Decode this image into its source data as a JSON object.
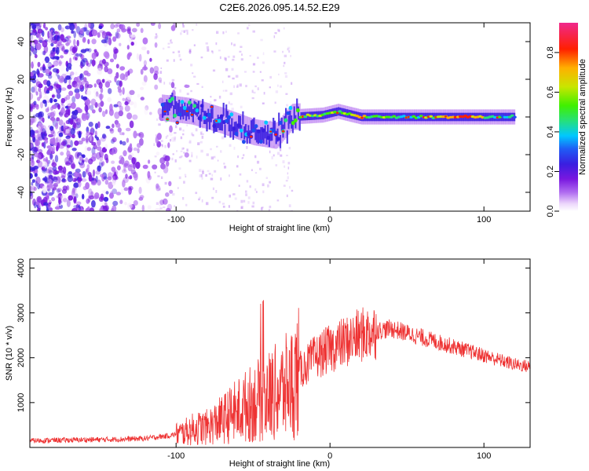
{
  "title": "C2E6.2026.095.14.52.E29",
  "colors": {
    "snr_line": "#ee3333",
    "axis": "#000000",
    "colormap": [
      "#f7ecfc",
      "#b06cf0",
      "#7a18e0",
      "#3a1ee0",
      "#1f4df0",
      "#00c8ff",
      "#26e07a",
      "#3ff000",
      "#c8e600",
      "#ffb000",
      "#ff2000",
      "#f0288c"
    ]
  },
  "chart_data": [
    {
      "type": "heatmap",
      "name": "spectrogram",
      "title": "",
      "xlabel": "Height of straight line (km)",
      "ylabel": "Frequency (Hz)",
      "xlim": [
        -195,
        130
      ],
      "ylim": [
        -50,
        50
      ],
      "xticks": [
        -100,
        0,
        100
      ],
      "yticks": [
        -40,
        -20,
        0,
        20,
        40
      ],
      "colorbar": {
        "label": "Normalized spectral amplitude",
        "range": [
          0,
          0.95
        ],
        "ticks": [
          0.0,
          0.2,
          0.4,
          0.6,
          0.8
        ]
      },
      "description_points": [
        {
          "x": -110,
          "y": 5,
          "v": 0.45
        },
        {
          "x": -90,
          "y": 3,
          "v": 0.4
        },
        {
          "x": -70,
          "y": -2,
          "v": 0.35
        },
        {
          "x": -50,
          "y": -8,
          "v": 0.35
        },
        {
          "x": -35,
          "y": -10,
          "v": 0.3
        },
        {
          "x": -25,
          "y": 0,
          "v": 0.55
        },
        {
          "x": -5,
          "y": 1,
          "v": 0.7
        },
        {
          "x": 5,
          "y": 3,
          "v": 0.6
        },
        {
          "x": 20,
          "y": 0,
          "v": 0.75
        },
        {
          "x": 50,
          "y": 0,
          "v": 0.45
        },
        {
          "x": 84,
          "y": 0,
          "v": 0.9
        },
        {
          "x": 120,
          "y": 0,
          "v": 0.4
        }
      ]
    },
    {
      "type": "line",
      "name": "snr",
      "title": "",
      "xlabel": "Height of straight line (km)",
      "ylabel": "SNR (10 * v/v)",
      "xlim": [
        -195,
        130
      ],
      "ylim": [
        0,
        4200
      ],
      "xticks": [
        -100,
        0,
        100
      ],
      "yticks": [
        1000,
        2000,
        3000,
        4000
      ],
      "series": [
        {
          "name": "SNR",
          "x": [
            -195,
            -180,
            -160,
            -140,
            -120,
            -105,
            -95,
            -88,
            -80,
            -70,
            -60,
            -50,
            -40,
            -30,
            -25,
            -20,
            -10,
            0,
            10,
            20,
            30,
            40,
            50,
            60,
            70,
            80,
            90,
            100,
            110,
            120,
            130
          ],
          "y": [
            150,
            160,
            170,
            180,
            200,
            260,
            330,
            420,
            450,
            620,
            820,
            1000,
            1150,
            1300,
            1450,
            1700,
            2000,
            2200,
            2350,
            2500,
            2600,
            2650,
            2550,
            2450,
            2350,
            2250,
            2150,
            2050,
            1950,
            1850,
            1800
          ]
        }
      ]
    }
  ]
}
